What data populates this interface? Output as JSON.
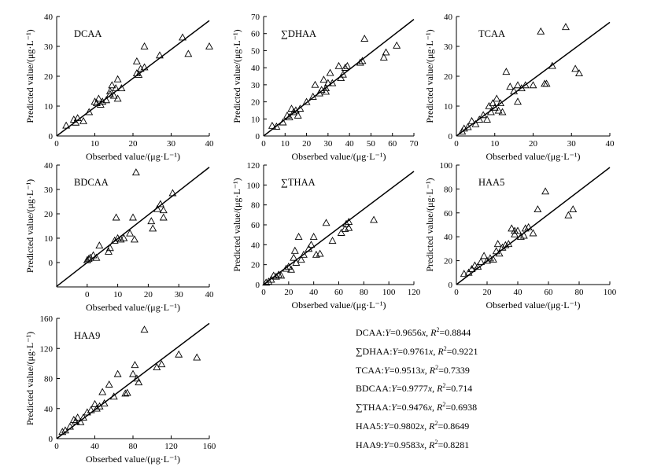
{
  "chart_data": [
    {
      "type": "scatter",
      "title": "DCAA",
      "xlabel": "Obserbed value/(μg·L⁻¹)",
      "ylabel": "Predicted value/(μg·L⁻¹)",
      "xlim": [
        0,
        40
      ],
      "ylim": [
        0,
        40
      ],
      "xticks": [
        "0",
        "10",
        "20",
        "30",
        "40"
      ],
      "yticks": [
        "0",
        "10",
        "20",
        "30",
        "40"
      ],
      "fit_slope": 0.9656,
      "x": [
        2.5,
        4.5,
        5,
        5.5,
        7,
        8.5,
        10,
        10.5,
        11,
        11.5,
        12,
        13,
        14,
        14,
        14.5,
        15,
        15.5,
        16,
        16,
        17,
        21,
        21,
        21.5,
        22,
        23,
        23,
        27,
        33,
        34.5,
        40
      ],
      "y": [
        3.5,
        5.5,
        4.5,
        6,
        5,
        8,
        11.5,
        11,
        12.5,
        10.5,
        11.5,
        12,
        14,
        15,
        17,
        13.5,
        16,
        12.5,
        19,
        16,
        25,
        21,
        20.5,
        22.5,
        23,
        30,
        27,
        33,
        27.5,
        30
      ]
    },
    {
      "type": "scatter",
      "title": "∑DHAA",
      "xlabel": "Obserbed value/(μg·L⁻¹)",
      "ylabel": "Predicted value/(μg·L⁻¹)",
      "xlim": [
        0,
        70
      ],
      "ylim": [
        0,
        70
      ],
      "xticks": [
        "0",
        "10",
        "20",
        "30",
        "40",
        "50",
        "60",
        "70"
      ],
      "yticks": [
        "0",
        "10",
        "20",
        "30",
        "40",
        "50",
        "60",
        "70"
      ],
      "fit_slope": 0.9761,
      "x": [
        4,
        6,
        9,
        11,
        12,
        13,
        14,
        15,
        16,
        17,
        20,
        23,
        24,
        26,
        27,
        28,
        29,
        29,
        30,
        31,
        32,
        35,
        36,
        37,
        38,
        39,
        45,
        46,
        47,
        56,
        57,
        62
      ],
      "y": [
        6,
        5.5,
        8,
        12,
        11,
        16,
        14,
        15,
        12,
        16,
        20,
        23,
        30,
        25,
        27,
        33,
        28,
        26,
        31,
        37,
        31,
        41,
        34,
        36,
        40,
        41,
        43,
        44,
        57,
        46,
        49,
        53
      ]
    },
    {
      "type": "scatter",
      "title": "TCAA",
      "xlabel": "Obserbed value/(μg·L⁻¹)",
      "ylabel": "Predicted value/(μg·L⁻¹)",
      "xlim": [
        0,
        40
      ],
      "ylim": [
        0,
        40
      ],
      "xticks": [
        "0",
        "10",
        "20",
        "30",
        "40"
      ],
      "yticks": [
        "0",
        "10",
        "20",
        "30",
        "40"
      ],
      "fit_slope": 0.9513,
      "x": [
        1.5,
        2,
        3,
        4,
        5,
        6,
        7,
        8,
        8.5,
        9,
        9.5,
        10,
        10.5,
        11,
        11.5,
        12,
        13,
        14,
        15,
        16,
        16,
        17,
        18,
        20,
        22,
        23,
        23.5,
        25,
        28.5,
        31,
        32
      ],
      "y": [
        1.5,
        2.5,
        3,
        5,
        4,
        5.5,
        7,
        5.5,
        10,
        8,
        11,
        9.5,
        12.5,
        8.5,
        11,
        8,
        21.5,
        16.5,
        15,
        17,
        11.5,
        16,
        17,
        17,
        35,
        17.5,
        17.5,
        23.5,
        36.5,
        22.5,
        21
      ]
    },
    {
      "type": "scatter",
      "title": "BDCAA",
      "xlabel": "Obserbed value/(μg·L⁻¹)",
      "ylabel": "Predicted value/(μg·L⁻¹)",
      "xlim": [
        -10,
        40
      ],
      "ylim": [
        -10,
        40
      ],
      "xticks": [
        "0",
        "10",
        "20",
        "30",
        "40"
      ],
      "yticks": [
        "0",
        "10",
        "20",
        "30",
        "40"
      ],
      "fit_slope": 0.9777,
      "x": [
        0,
        0.5,
        1,
        2,
        3,
        4,
        7,
        7.5,
        9,
        9.5,
        10,
        11,
        12,
        14,
        15,
        15.5,
        16,
        21,
        21.5,
        23,
        24,
        25,
        25,
        28
      ],
      "y": [
        1,
        1.5,
        2,
        3,
        2,
        7,
        4.5,
        6,
        9,
        18.5,
        10,
        9.5,
        10,
        12,
        18.5,
        9.5,
        37,
        17,
        14,
        22,
        24,
        21.5,
        18.5,
        28.5
      ]
    },
    {
      "type": "scatter",
      "title": "∑THAA",
      "xlabel": "Obserbed value/(μg·L⁻¹)",
      "ylabel": "Predicted value/(μg·L⁻¹)",
      "xlim": [
        0,
        120
      ],
      "ylim": [
        0,
        120
      ],
      "xticks": [
        "0",
        "20",
        "40",
        "60",
        "80",
        "100",
        "120"
      ],
      "yticks": [
        "0",
        "20",
        "40",
        "60",
        "80",
        "100",
        "120"
      ],
      "fit_slope": 0.9476,
      "x": [
        2,
        4,
        6,
        8,
        10,
        12,
        14,
        18,
        20,
        22,
        24,
        25,
        26,
        28,
        30,
        32,
        36,
        38,
        40,
        42,
        45,
        50,
        55,
        62,
        65,
        66,
        68,
        68,
        88
      ],
      "y": [
        2,
        3,
        5,
        9,
        8,
        10,
        9,
        16,
        18,
        15,
        27,
        34,
        22,
        48,
        25,
        30,
        36,
        40,
        48,
        30,
        31,
        62,
        44,
        52,
        56,
        61,
        63,
        57,
        65
      ]
    },
    {
      "type": "scatter",
      "title": "HAA5",
      "xlabel": "Obserbed value/(μg·L⁻¹)",
      "ylabel": "Predicted value/(μg·L⁻¹)",
      "xlim": [
        0,
        100
      ],
      "ylim": [
        0,
        100
      ],
      "xticks": [
        "0",
        "20",
        "40",
        "60",
        "80",
        "100"
      ],
      "yticks": [
        "0",
        "20",
        "40",
        "60",
        "80",
        "100"
      ],
      "fit_slope": 0.9802,
      "x": [
        5,
        8,
        10,
        12,
        14,
        16,
        18,
        20,
        22,
        24,
        26,
        27,
        28,
        30,
        32,
        34,
        36,
        38,
        38,
        40,
        42,
        44,
        45,
        47,
        50,
        53,
        58,
        73,
        76
      ],
      "y": [
        9,
        10,
        13,
        16,
        15,
        19,
        24,
        20,
        22,
        21,
        28,
        34,
        26,
        31,
        33,
        34,
        47,
        42,
        45,
        45,
        40,
        41,
        47,
        48,
        43,
        63,
        78,
        58,
        63
      ]
    },
    {
      "type": "scatter",
      "title": "HAA9",
      "xlabel": "Obserbed value/(μg·L⁻¹)",
      "ylabel": "Predicted value/(μg·L⁻¹)",
      "xlim": [
        0,
        160
      ],
      "ylim": [
        0,
        160
      ],
      "xticks": [
        "0",
        "40",
        "80",
        "120",
        "160"
      ],
      "yticks": [
        "0",
        "40",
        "80",
        "120",
        "160"
      ],
      "fit_slope": 0.9583,
      "x": [
        6,
        9,
        14,
        18,
        20,
        22,
        25,
        28,
        32,
        36,
        40,
        42,
        45,
        48,
        50,
        55,
        60,
        64,
        72,
        74,
        80,
        82,
        84,
        86,
        92,
        105,
        110,
        128,
        147
      ],
      "y": [
        9,
        11,
        16,
        25,
        23,
        28,
        22,
        28,
        35,
        38,
        46,
        40,
        43,
        62,
        47,
        72,
        56,
        86,
        60,
        61,
        86,
        98,
        80,
        75,
        145,
        95,
        99,
        112,
        108
      ]
    }
  ],
  "legend_equations": [
    {
      "name": "DCAA",
      "slope": "0.9656",
      "r2": "0.8844"
    },
    {
      "name": "∑DHAA",
      "slope": "0.9761",
      "r2": "0.9221"
    },
    {
      "name": "TCAA",
      "slope": "0.9513",
      "r2": "0.7339"
    },
    {
      "name": "BDCAA",
      "slope": "0.9777",
      "r2": "0.714"
    },
    {
      "name": "∑THAA",
      "slope": "0.9476",
      "r2": "0.6938"
    },
    {
      "name": "HAA5",
      "slope": "0.9802",
      "r2": "0.8649"
    },
    {
      "name": "HAA9",
      "slope": "0.9583",
      "r2": "0.8281"
    }
  ],
  "equation_parts": {
    "y_var": "Y",
    "equals": "=",
    "x_var": "x",
    "sep": ", ",
    "r_var": "R",
    "r_exp": "2",
    "colon": ":"
  }
}
